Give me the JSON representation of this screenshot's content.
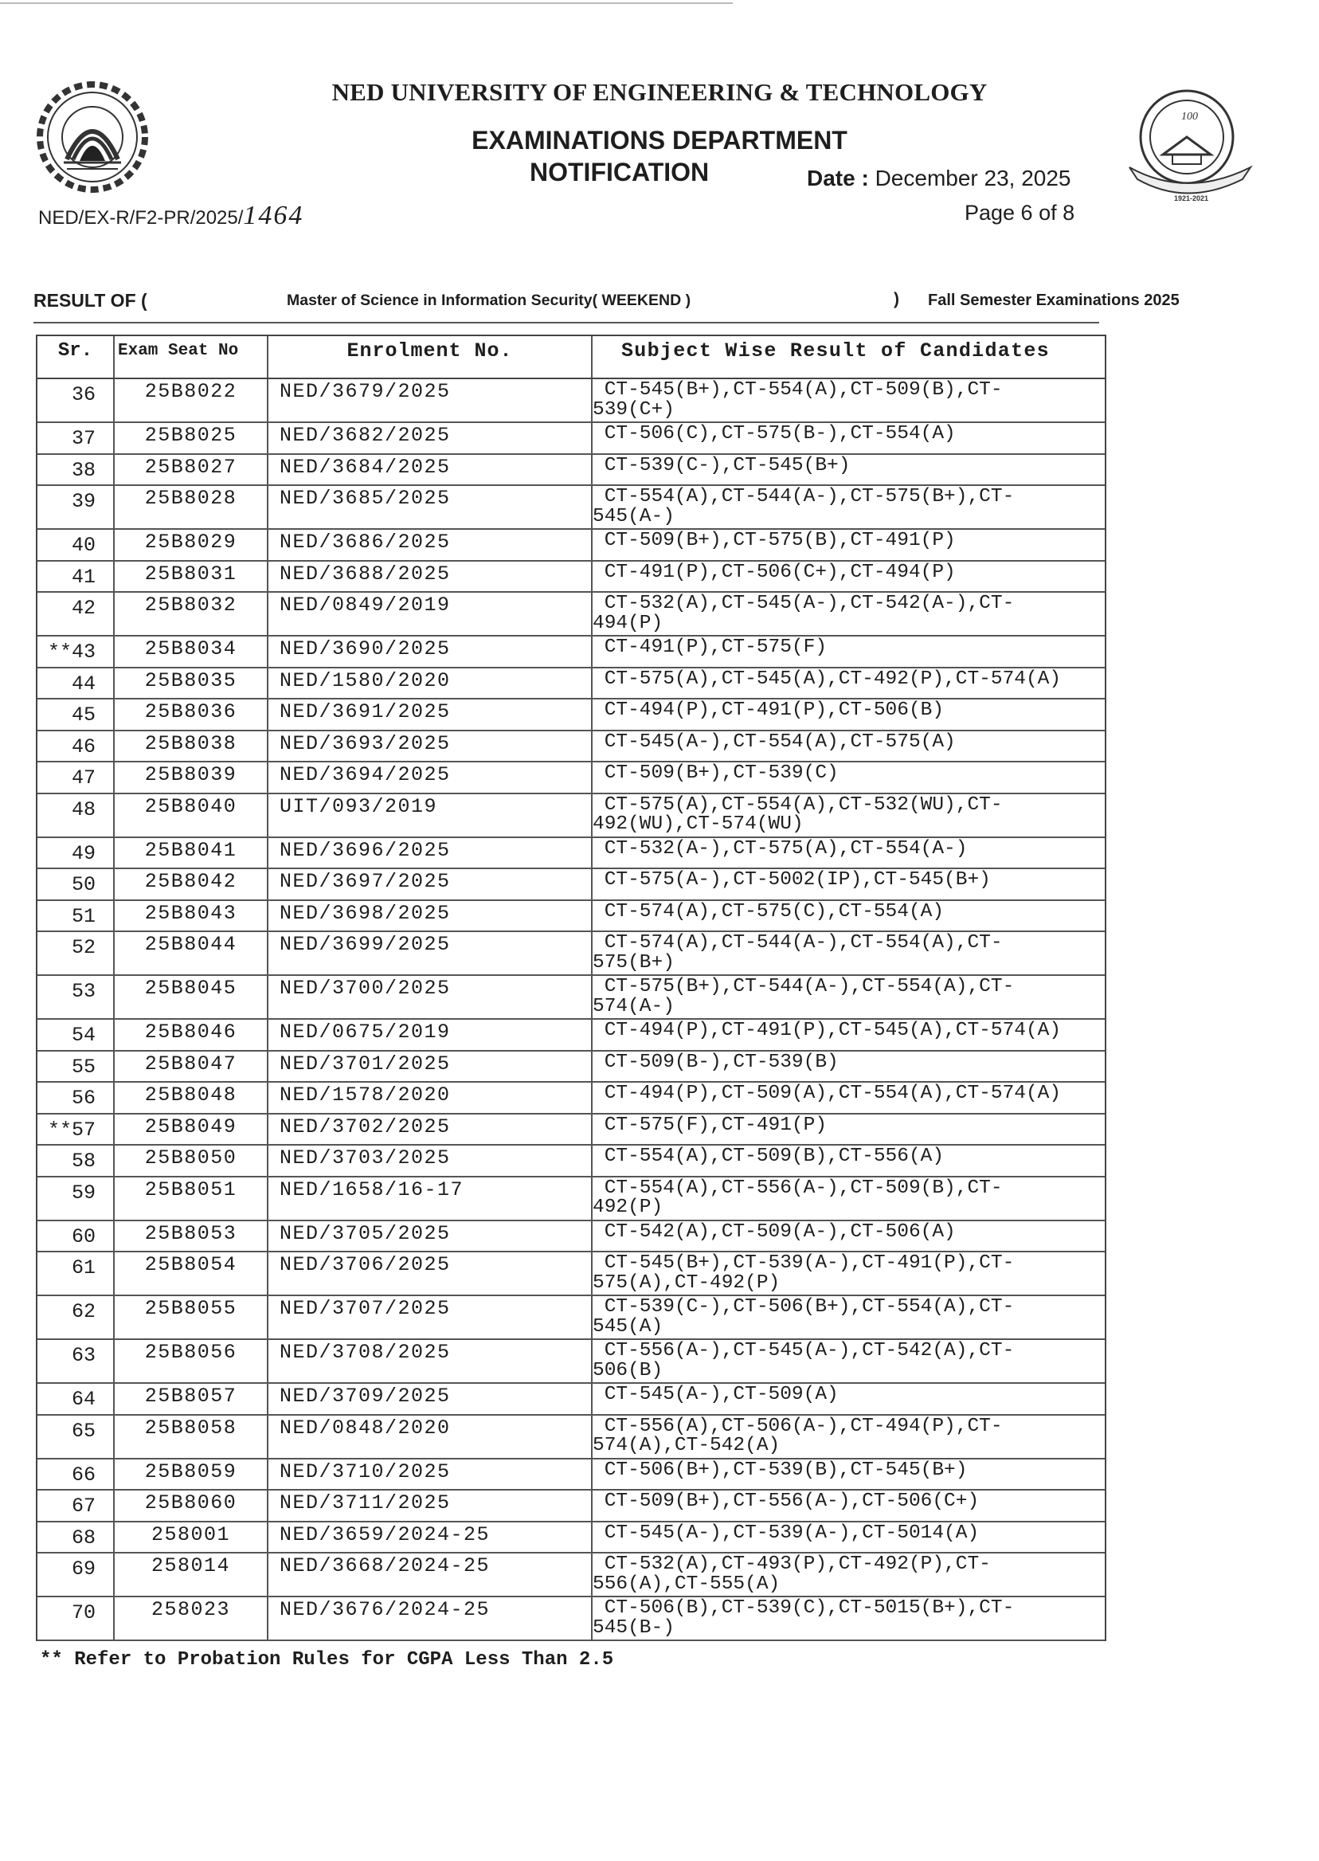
{
  "header": {
    "university": "NED UNIVERSITY OF ENGINEERING & TECHNOLOGY",
    "department": "EXAMINATIONS DEPARTMENT",
    "notification": "NOTIFICATION",
    "date_label": "Date :",
    "date_value": "December 23, 2025",
    "reference": "NED/EX-R/F2-PR/2025/",
    "reference_handwritten": "1464",
    "page": "Page 6 of 8",
    "logo_left_text": "NED UNIVERSITY OF ENGINEERING & TECHNOLOGY KARACHI",
    "logo_right_text": "NED UNIVERSITY OF ENGINEERING & TECHNOLOGY 100 1921-2021"
  },
  "result_line": {
    "prefix": "RESULT OF (",
    "program": "Master of Science in Information Security( WEEKEND )",
    "close": ")",
    "exam": "Fall Semester Examinations 2025"
  },
  "table": {
    "columns": [
      "Sr.",
      "Exam Seat No",
      "Enrolment No.",
      "Subject Wise Result of Candidates"
    ],
    "rows": [
      {
        "mark": "",
        "sr": "36",
        "seat": "25B8022",
        "enrol": "NED/3679/2025",
        "result": "CT-545(B+),CT-554(A),CT-509(B),CT-539(C+)"
      },
      {
        "mark": "",
        "sr": "37",
        "seat": "25B8025",
        "enrol": "NED/3682/2025",
        "result": "CT-506(C),CT-575(B-),CT-554(A)"
      },
      {
        "mark": "",
        "sr": "38",
        "seat": "25B8027",
        "enrol": "NED/3684/2025",
        "result": "CT-539(C-),CT-545(B+)"
      },
      {
        "mark": "",
        "sr": "39",
        "seat": "25B8028",
        "enrol": "NED/3685/2025",
        "result": "CT-554(A),CT-544(A-),CT-575(B+),CT-545(A-)"
      },
      {
        "mark": "",
        "sr": "40",
        "seat": "25B8029",
        "enrol": "NED/3686/2025",
        "result": "CT-509(B+),CT-575(B),CT-491(P)"
      },
      {
        "mark": "",
        "sr": "41",
        "seat": "25B8031",
        "enrol": "NED/3688/2025",
        "result": "CT-491(P),CT-506(C+),CT-494(P)"
      },
      {
        "mark": "",
        "sr": "42",
        "seat": "25B8032",
        "enrol": "NED/0849/2019",
        "result": "CT-532(A),CT-545(A-),CT-542(A-),CT-494(P)"
      },
      {
        "mark": "**",
        "sr": "43",
        "seat": "25B8034",
        "enrol": "NED/3690/2025",
        "result": "CT-491(P),CT-575(F)"
      },
      {
        "mark": "",
        "sr": "44",
        "seat": "25B8035",
        "enrol": "NED/1580/2020",
        "result": "CT-575(A),CT-545(A),CT-492(P),CT-574(A)"
      },
      {
        "mark": "",
        "sr": "45",
        "seat": "25B8036",
        "enrol": "NED/3691/2025",
        "result": "CT-494(P),CT-491(P),CT-506(B)"
      },
      {
        "mark": "",
        "sr": "46",
        "seat": "25B8038",
        "enrol": "NED/3693/2025",
        "result": "CT-545(A-),CT-554(A),CT-575(A)"
      },
      {
        "mark": "",
        "sr": "47",
        "seat": "25B8039",
        "enrol": "NED/3694/2025",
        "result": "CT-509(B+),CT-539(C)"
      },
      {
        "mark": "",
        "sr": "48",
        "seat": "25B8040",
        "enrol": "UIT/093/2019",
        "result": "CT-575(A),CT-554(A),CT-532(WU),CT-492(WU),CT-574(WU)"
      },
      {
        "mark": "",
        "sr": "49",
        "seat": "25B8041",
        "enrol": "NED/3696/2025",
        "result": "CT-532(A-),CT-575(A),CT-554(A-)"
      },
      {
        "mark": "",
        "sr": "50",
        "seat": "25B8042",
        "enrol": "NED/3697/2025",
        "result": "CT-575(A-),CT-5002(IP),CT-545(B+)"
      },
      {
        "mark": "",
        "sr": "51",
        "seat": "25B8043",
        "enrol": "NED/3698/2025",
        "result": "CT-574(A),CT-575(C),CT-554(A)"
      },
      {
        "mark": "",
        "sr": "52",
        "seat": "25B8044",
        "enrol": "NED/3699/2025",
        "result": "CT-574(A),CT-544(A-),CT-554(A),CT-575(B+)"
      },
      {
        "mark": "",
        "sr": "53",
        "seat": "25B8045",
        "enrol": "NED/3700/2025",
        "result": "CT-575(B+),CT-544(A-),CT-554(A),CT-574(A-)"
      },
      {
        "mark": "",
        "sr": "54",
        "seat": "25B8046",
        "enrol": "NED/0675/2019",
        "result": "CT-494(P),CT-491(P),CT-545(A),CT-574(A)"
      },
      {
        "mark": "",
        "sr": "55",
        "seat": "25B8047",
        "enrol": "NED/3701/2025",
        "result": "CT-509(B-),CT-539(B)"
      },
      {
        "mark": "",
        "sr": "56",
        "seat": "25B8048",
        "enrol": "NED/1578/2020",
        "result": "CT-494(P),CT-509(A),CT-554(A),CT-574(A)"
      },
      {
        "mark": "**",
        "sr": "57",
        "seat": "25B8049",
        "enrol": "NED/3702/2025",
        "result": "CT-575(F),CT-491(P)"
      },
      {
        "mark": "",
        "sr": "58",
        "seat": "25B8050",
        "enrol": "NED/3703/2025",
        "result": "CT-554(A),CT-509(B),CT-556(A)"
      },
      {
        "mark": "",
        "sr": "59",
        "seat": "25B8051",
        "enrol": "NED/1658/16-17",
        "result": "CT-554(A),CT-556(A-),CT-509(B),CT-492(P)"
      },
      {
        "mark": "",
        "sr": "60",
        "seat": "25B8053",
        "enrol": "NED/3705/2025",
        "result": "CT-542(A),CT-509(A-),CT-506(A)"
      },
      {
        "mark": "",
        "sr": "61",
        "seat": "25B8054",
        "enrol": "NED/3706/2025",
        "result": "CT-545(B+),CT-539(A-),CT-491(P),CT-575(A),CT-492(P)"
      },
      {
        "mark": "",
        "sr": "62",
        "seat": "25B8055",
        "enrol": "NED/3707/2025",
        "result": "CT-539(C-),CT-506(B+),CT-554(A),CT-545(A)"
      },
      {
        "mark": "",
        "sr": "63",
        "seat": "25B8056",
        "enrol": "NED/3708/2025",
        "result": "CT-556(A-),CT-545(A-),CT-542(A),CT-506(B)"
      },
      {
        "mark": "",
        "sr": "64",
        "seat": "25B8057",
        "enrol": "NED/3709/2025",
        "result": "CT-545(A-),CT-509(A)"
      },
      {
        "mark": "",
        "sr": "65",
        "seat": "25B8058",
        "enrol": "NED/0848/2020",
        "result": "CT-556(A),CT-506(A-),CT-494(P),CT-574(A),CT-542(A)"
      },
      {
        "mark": "",
        "sr": "66",
        "seat": "25B8059",
        "enrol": "NED/3710/2025",
        "result": "CT-506(B+),CT-539(B),CT-545(B+)"
      },
      {
        "mark": "",
        "sr": "67",
        "seat": "25B8060",
        "enrol": "NED/3711/2025",
        "result": "CT-509(B+),CT-556(A-),CT-506(C+)"
      },
      {
        "mark": "",
        "sr": "68",
        "seat": "258001",
        "enrol": "NED/3659/2024-25",
        "result": "CT-545(A-),CT-539(A-),CT-5014(A)"
      },
      {
        "mark": "",
        "sr": "69",
        "seat": "258014",
        "enrol": "NED/3668/2024-25",
        "result": "CT-532(A),CT-493(P),CT-492(P),CT-556(A),CT-555(A)"
      },
      {
        "mark": "",
        "sr": "70",
        "seat": "258023",
        "enrol": "NED/3676/2024-25",
        "result": "CT-506(B),CT-539(C),CT-5015(B+),CT-545(B-)"
      }
    ]
  },
  "footnote": "** Refer to Probation Rules for CGPA Less Than 2.5"
}
